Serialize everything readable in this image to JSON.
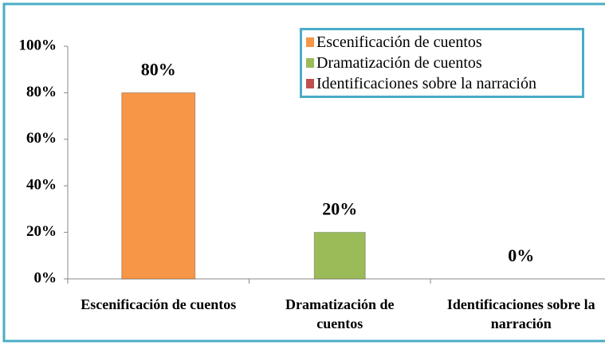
{
  "chart_data": {
    "type": "bar",
    "categories": [
      "Escenificación de cuentos",
      "Dramatización de cuentos",
      "Identificaciones sobre la narración"
    ],
    "values": [
      80,
      20,
      0
    ],
    "value_labels": [
      "80%",
      "20%",
      "0%"
    ],
    "colors": [
      "#f79646",
      "#9bbb59",
      "#c0504d"
    ],
    "ylim": [
      0,
      100
    ],
    "yticks": [
      {
        "value": 0,
        "label": "0%"
      },
      {
        "value": 20,
        "label": "20%"
      },
      {
        "value": 40,
        "label": "40%"
      },
      {
        "value": 60,
        "label": "60%"
      },
      {
        "value": 80,
        "label": "80%"
      },
      {
        "value": 100,
        "label": "100%"
      }
    ],
    "legend": "top-right"
  }
}
